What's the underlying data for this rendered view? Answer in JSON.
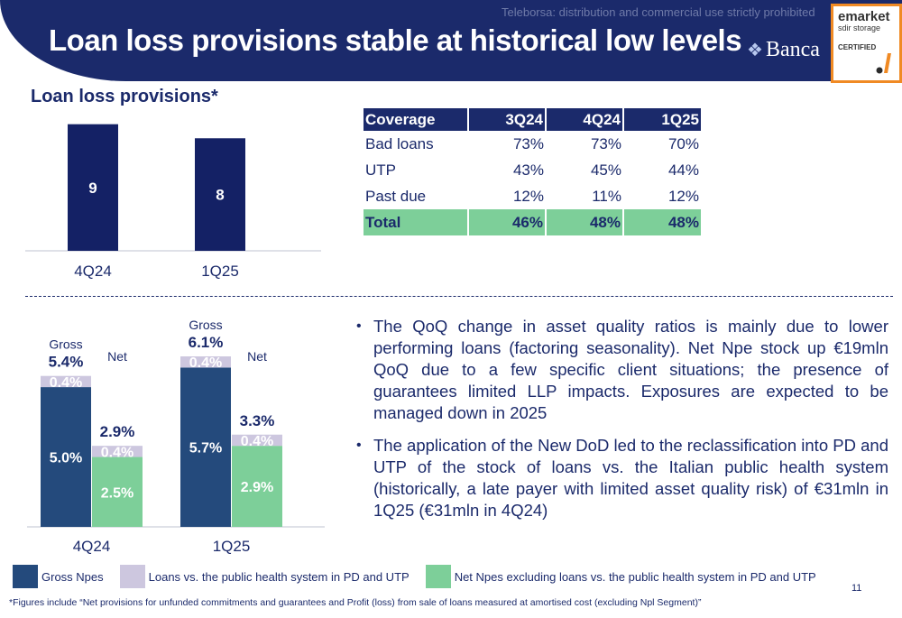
{
  "header": {
    "title": "Loan loss provisions stable at historical low levels",
    "watermark": "Teleborsa: distribution and commercial use strictly prohibited",
    "bank_name": "Banca",
    "emarket_line1": "emarket",
    "emarket_line2": "sdir storage",
    "emarket_line3": "CERTIFIED",
    "colors": {
      "navy": "#1b2a6b",
      "orange": "#f08a24"
    }
  },
  "llp": {
    "title": "Loan loss provisions*"
  },
  "coverage": {
    "headers": [
      "Coverage",
      "3Q24",
      "4Q24",
      "1Q25"
    ],
    "rows": [
      {
        "label": "Bad loans",
        "values": [
          "73%",
          "73%",
          "70%"
        ]
      },
      {
        "label": "UTP",
        "values": [
          "43%",
          "45%",
          "44%"
        ]
      },
      {
        "label": "Past due",
        "values": [
          "12%",
          "11%",
          "12%"
        ]
      }
    ],
    "total": {
      "label": "Total",
      "values": [
        "46%",
        "48%",
        "48%"
      ]
    }
  },
  "bullets": [
    "The QoQ change in asset quality ratios is mainly due to lower performing loans (factoring seasonality). Net Npe stock up €19mln QoQ due to a few specific client situations; the presence of guarantees limited LLP impacts. Exposures are expected to be managed down in 2025",
    "The application of the New DoD led to the reclassification into PD and UTP of the stock of loans vs. the Italian public health system (historically, a late payer with limited asset quality risk) of €31mln in 1Q25 (€31mln in 4Q24)"
  ],
  "legend": {
    "items": [
      {
        "label": "Gross Npes",
        "color": "#244a7c"
      },
      {
        "label": "Loans vs. the public health system in PD and UTP",
        "color": "#cdc7df"
      },
      {
        "label": "Net Npes excluding loans vs. the public health system in PD and UTP",
        "color": "#7dcf99"
      }
    ]
  },
  "page_number": "11",
  "footnote": "*Figures include “Net provisions for unfunded commitments and guarantees and Profit (loss) from sale of loans measured at amortised cost (excluding Npl Segment)”",
  "chart_data": [
    {
      "type": "bar",
      "categories": [
        "4Q24",
        "1Q25"
      ],
      "values": [
        9,
        8
      ],
      "data_labels": [
        "9",
        "8"
      ],
      "ylim": [
        0,
        9.3
      ],
      "color": "#142165",
      "grid": false
    },
    {
      "type": "bar",
      "stacked": true,
      "categories": [
        "4Q24",
        "1Q25"
      ],
      "gross_label": "Gross",
      "net_label": "Net",
      "ylim": [
        0,
        6.1
      ],
      "grid": false,
      "gross": {
        "totals": [
          "5.4%",
          "6.1%"
        ],
        "series": [
          {
            "values": [
              5.0,
              5.7
            ],
            "labels": [
              "5.0%",
              "5.7%"
            ],
            "color": "#244a7c"
          },
          {
            "values": [
              0.4,
              0.4
            ],
            "labels": [
              "0.4%",
              "0.4%"
            ],
            "color": "#cdc7df"
          }
        ]
      },
      "net": {
        "totals": [
          "2.9%",
          "3.3%"
        ],
        "series": [
          {
            "values": [
              2.5,
              2.9
            ],
            "labels": [
              "2.5%",
              "2.9%"
            ],
            "color": "#7dcf99"
          },
          {
            "values": [
              0.4,
              0.4
            ],
            "labels": [
              "0.4%",
              "0.4%"
            ],
            "color": "#cdc7df"
          }
        ]
      }
    }
  ]
}
